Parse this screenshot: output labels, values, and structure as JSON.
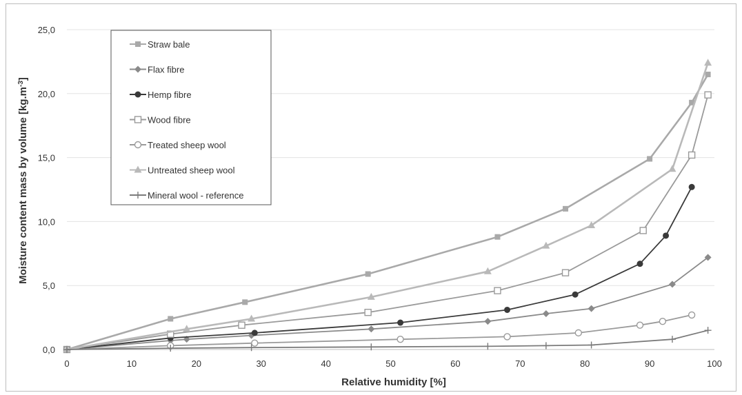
{
  "chart_data": {
    "type": "line",
    "title": "",
    "xlabel": "Relative humidity [%]",
    "ylabel": "Moisture content mass by volume [kg.m",
    "ylabel_sup": "-3",
    "ylabel_end": "]",
    "xlim": [
      0,
      100
    ],
    "ylim": [
      0,
      25
    ],
    "x_ticks": [
      "0",
      "10",
      "20",
      "30",
      "40",
      "50",
      "60",
      "70",
      "80",
      "90",
      "100"
    ],
    "y_ticks": [
      "0,0",
      "5,0",
      "10,0",
      "15,0",
      "20,0",
      "25,0"
    ],
    "grid": "horizontal",
    "legend_position": "top-left",
    "series": [
      {
        "name": "Straw bale",
        "color": "#a9a9a9",
        "marker": "square-filled",
        "x": [
          0,
          16,
          27.5,
          46.5,
          66.5,
          77,
          90,
          96.5,
          99
        ],
        "y": [
          0,
          2.4,
          3.7,
          5.9,
          8.8,
          11.0,
          14.9,
          19.3,
          21.5
        ]
      },
      {
        "name": "Flax fibre",
        "color": "#8a8a8a",
        "marker": "diamond",
        "x": [
          0,
          16,
          18.5,
          28.5,
          47,
          65,
          74,
          81,
          93.5,
          99
        ],
        "y": [
          0,
          0.7,
          0.8,
          1.1,
          1.6,
          2.2,
          2.8,
          3.2,
          5.1,
          7.2
        ]
      },
      {
        "name": "Hemp fibre",
        "color": "#3a3a3a",
        "marker": "circle-filled",
        "x": [
          0,
          16,
          29,
          51.5,
          68,
          78.5,
          88.5,
          92.5,
          96.5
        ],
        "y": [
          0,
          0.9,
          1.3,
          2.1,
          3.1,
          4.3,
          6.7,
          8.9,
          12.7
        ]
      },
      {
        "name": "Wood fibre",
        "color": "#9a9a9a",
        "marker": "square-open",
        "x": [
          0,
          16,
          27,
          46.5,
          66.5,
          77,
          89,
          96.5,
          99
        ],
        "y": [
          0,
          1.2,
          1.9,
          2.9,
          4.6,
          6.0,
          9.3,
          15.2,
          19.9
        ]
      },
      {
        "name": "Treated sheep wool",
        "color": "#9a9a9a",
        "marker": "circle-open",
        "x": [
          0,
          16,
          29,
          51.5,
          68,
          79,
          88.5,
          92,
          96.5
        ],
        "y": [
          0,
          0.3,
          0.5,
          0.8,
          1.0,
          1.3,
          1.9,
          2.2,
          2.7
        ]
      },
      {
        "name": "Untreated  sheep wool",
        "color": "#b9b9b9",
        "marker": "triangle",
        "x": [
          0,
          18.5,
          28.5,
          47,
          65,
          74,
          81,
          93.5,
          99
        ],
        "y": [
          0,
          1.6,
          2.4,
          4.1,
          6.1,
          8.1,
          9.7,
          14.1,
          22.4
        ]
      },
      {
        "name": "Mineral wool - reference",
        "color": "#7a7a7a",
        "marker": "plus",
        "x": [
          0,
          16,
          28.5,
          47,
          65,
          74,
          81,
          93.5,
          99
        ],
        "y": [
          0,
          0.1,
          0.15,
          0.2,
          0.25,
          0.3,
          0.35,
          0.8,
          1.5
        ]
      }
    ]
  }
}
